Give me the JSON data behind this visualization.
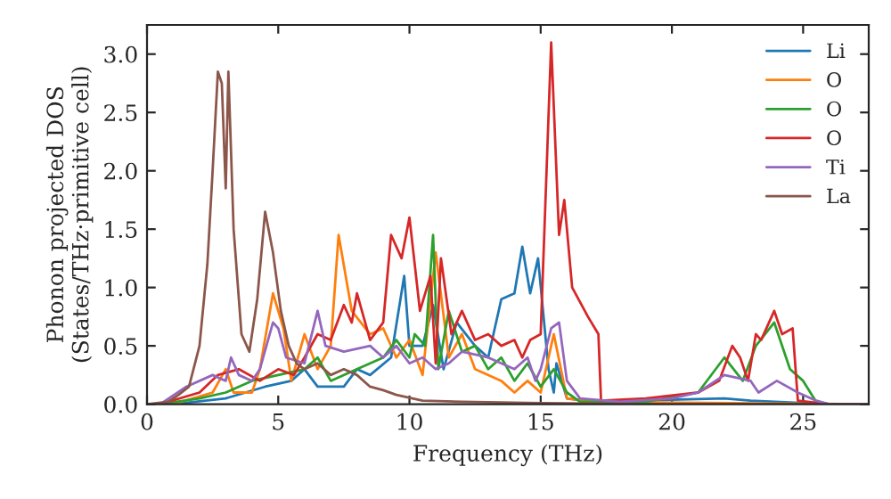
{
  "chart_data": {
    "type": "line",
    "xlabel": "Frequency (THz)",
    "ylabel": "Phonon projected DOS\n(States/THz·primitive cell)",
    "xlim": [
      0,
      27.5
    ],
    "ylim": [
      0,
      3.25
    ],
    "xticks": [
      0,
      5,
      10,
      15,
      20,
      25
    ],
    "yticks": [
      {
        "value": 0,
        "label": "0.0"
      },
      {
        "value": 0.5,
        "label": "0.5"
      },
      {
        "value": 1,
        "label": "1.0"
      },
      {
        "value": 1.5,
        "label": "1.5"
      },
      {
        "value": 2,
        "label": "2.0"
      },
      {
        "value": 2.5,
        "label": "2.5"
      },
      {
        "value": 3,
        "label": "3.0"
      }
    ],
    "grid": false,
    "legend": "top right",
    "series": [
      {
        "name": "Li",
        "color": "#1f77b4",
        "x": [
          1,
          3,
          4.5,
          5.5,
          6,
          6.5,
          7.5,
          8,
          8.5,
          9.3,
          9.8,
          10,
          10.5,
          10.9,
          11.3,
          11.8,
          12.5,
          13,
          13.5,
          14,
          14.3,
          14.6,
          14.9,
          15.3,
          15.5,
          15.6,
          16,
          17,
          22,
          23,
          26,
          27.5
        ],
        "values": [
          0,
          0.05,
          0.15,
          0.2,
          0.3,
          0.15,
          0.15,
          0.3,
          0.25,
          0.4,
          1.1,
          0.5,
          0.5,
          0.85,
          0.3,
          0.7,
          0.5,
          0.4,
          0.9,
          0.95,
          1.35,
          0.95,
          1.25,
          0.3,
          0.1,
          0.35,
          0.05,
          0.02,
          0.05,
          0.03,
          0,
          0
        ]
      },
      {
        "name": "O",
        "color": "#ff7f0e",
        "x": [
          1,
          2.5,
          3,
          3.3,
          4,
          4.3,
          4.8,
          5.2,
          5.5,
          6,
          6.5,
          7,
          7.3,
          7.8,
          8.5,
          9,
          9.5,
          10,
          10.5,
          11,
          11.5,
          12,
          12.5,
          13.5,
          14,
          14.5,
          15,
          15.5,
          16,
          17,
          27.5
        ],
        "values": [
          0,
          0.1,
          0.3,
          0.1,
          0.1,
          0.3,
          0.95,
          0.65,
          0.2,
          0.6,
          0.3,
          0.5,
          1.45,
          0.8,
          0.6,
          0.65,
          0.4,
          0.55,
          0.25,
          1.3,
          0.4,
          0.6,
          0.3,
          0.2,
          0.1,
          0.2,
          0.1,
          0.6,
          0.05,
          0.02,
          0
        ]
      },
      {
        "name": "O",
        "color": "#2ca02c",
        "x": [
          0.5,
          2,
          3,
          4,
          5,
          6,
          6.5,
          7,
          8,
          9,
          9.5,
          10,
          10.2,
          10.6,
          10.9,
          11.1,
          11.5,
          12,
          12.5,
          13,
          13.5,
          14,
          14.5,
          15,
          15.5,
          16,
          16.5,
          19,
          21,
          22,
          22.7,
          23.2,
          23.9,
          24.5,
          25,
          25.5,
          26,
          27.5
        ],
        "values": [
          0,
          0.05,
          0.1,
          0.2,
          0.25,
          0.3,
          0.4,
          0.2,
          0.3,
          0.4,
          0.55,
          0.4,
          0.6,
          0.5,
          1.45,
          0.3,
          0.8,
          0.45,
          0.5,
          0.3,
          0.4,
          0.2,
          0.35,
          0.15,
          0.3,
          0.1,
          0.02,
          0.02,
          0.1,
          0.4,
          0.2,
          0.5,
          0.7,
          0.3,
          0.2,
          0.02,
          0,
          0
        ]
      },
      {
        "name": "O",
        "color": "#d62728",
        "x": [
          0.5,
          2,
          2.7,
          3.5,
          4.3,
          5,
          5.6,
          6,
          6.5,
          7,
          7.5,
          7.8,
          8,
          8.5,
          9,
          9.3,
          9.7,
          10,
          10.4,
          10.8,
          11,
          11.2,
          11.6,
          12,
          12.5,
          13,
          13.5,
          14,
          14.3,
          14.6,
          15,
          15.4,
          15.7,
          15.9,
          16.2,
          16.8,
          17.2,
          17.3,
          19,
          21,
          21.8,
          22.3,
          22.6,
          22.9,
          23.2,
          23.4,
          23.9,
          24.2,
          24.6,
          24.8,
          26,
          27.5
        ],
        "values": [
          0,
          0.1,
          0.25,
          0.3,
          0.2,
          0.3,
          0.25,
          0.4,
          0.6,
          0.55,
          0.85,
          0.7,
          0.95,
          0.55,
          0.7,
          1.45,
          1.25,
          1.6,
          0.8,
          1.1,
          0.35,
          1.25,
          0.6,
          0.8,
          0.55,
          0.6,
          0.5,
          0.55,
          0.4,
          0.55,
          0.6,
          3.1,
          1.45,
          1.75,
          1.0,
          0.75,
          0.6,
          0.03,
          0.05,
          0.1,
          0.2,
          0.5,
          0.4,
          0.2,
          0.6,
          0.55,
          0.8,
          0.6,
          0.65,
          0.03,
          0,
          0
        ]
      },
      {
        "name": "Ti",
        "color": "#9467bd",
        "x": [
          0.5,
          1.5,
          2.5,
          3,
          3.2,
          3.5,
          4,
          4.3,
          4.8,
          5,
          5.3,
          6,
          6.5,
          6.8,
          7.5,
          8.5,
          9,
          9.5,
          10,
          10.5,
          11,
          11.5,
          12,
          13,
          14,
          14.5,
          14.8,
          15,
          15.4,
          15.7,
          16,
          16.5,
          18,
          20,
          21,
          22,
          23,
          23.3,
          24,
          24.8,
          25.5,
          26,
          27.5
        ],
        "values": [
          0,
          0.15,
          0.25,
          0.2,
          0.4,
          0.25,
          0.2,
          0.3,
          0.7,
          0.65,
          0.4,
          0.35,
          0.8,
          0.5,
          0.45,
          0.5,
          0.4,
          0.5,
          0.35,
          0.4,
          0.3,
          0.35,
          0.45,
          0.4,
          0.3,
          0.4,
          0.2,
          0.3,
          0.65,
          0.7,
          0.2,
          0.05,
          0.02,
          0.05,
          0.1,
          0.25,
          0.2,
          0.1,
          0.2,
          0.1,
          0.03,
          0,
          0
        ]
      },
      {
        "name": "La",
        "color": "#8c564b",
        "x": [
          0,
          0.8,
          1.2,
          1.6,
          2.0,
          2.3,
          2.5,
          2.7,
          2.85,
          3.0,
          3.1,
          3.3,
          3.6,
          3.9,
          4.2,
          4.5,
          4.8,
          5.1,
          5.4,
          5.7,
          6.0,
          6.5,
          7.0,
          7.5,
          8.0,
          8.5,
          9.0,
          9.5,
          10.5,
          12,
          15,
          20,
          27.5
        ],
        "values": [
          0,
          0.02,
          0.08,
          0.15,
          0.5,
          1.2,
          2.0,
          2.85,
          2.75,
          1.85,
          2.85,
          1.5,
          0.6,
          0.45,
          0.9,
          1.65,
          1.3,
          0.8,
          0.5,
          0.35,
          0.3,
          0.35,
          0.25,
          0.3,
          0.25,
          0.15,
          0.12,
          0.08,
          0.03,
          0.02,
          0.01,
          0,
          0
        ]
      }
    ]
  }
}
